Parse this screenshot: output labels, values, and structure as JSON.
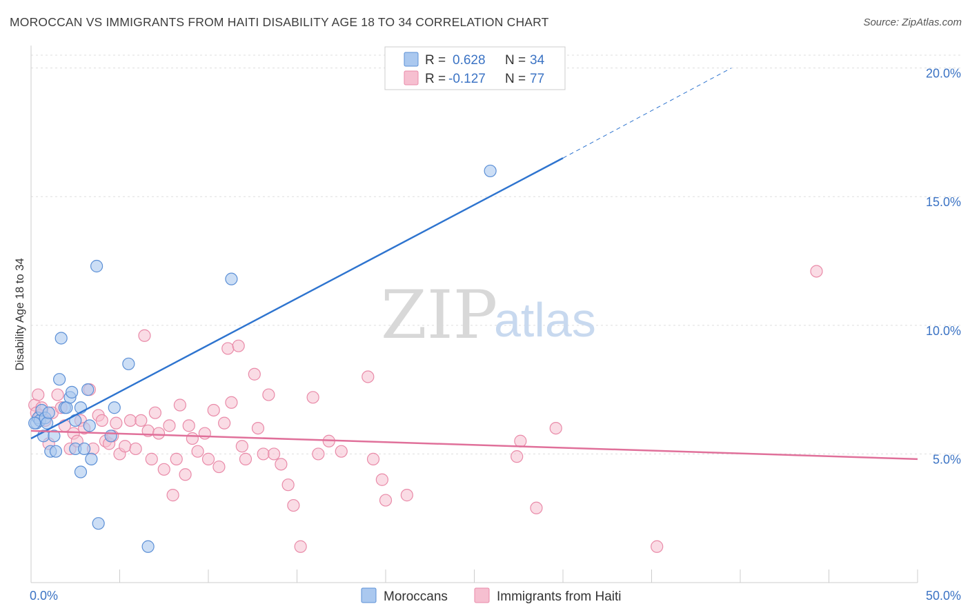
{
  "header": {
    "title": "MOROCCAN VS IMMIGRANTS FROM HAITI DISABILITY AGE 18 TO 34 CORRELATION CHART",
    "source": "Source: ZipAtlas.com"
  },
  "watermark": {
    "zip": "ZIP",
    "atlas": "atlas"
  },
  "colors": {
    "blue_fill": "#aac8ef",
    "blue_stroke": "#5b8fd6",
    "blue_line": "#2e74cf",
    "pink_fill": "#f6bfd0",
    "pink_stroke": "#e98aa8",
    "pink_line": "#e0709a",
    "grid": "#dddddd",
    "tick_text": "#3b73c4"
  },
  "legend": {
    "rows": [
      {
        "r_label": "R =",
        "r_value": "0.628",
        "n_label": "N =",
        "n_value": "34"
      },
      {
        "r_label": "R =",
        "r_value": "-0.127",
        "n_label": "N =",
        "n_value": "77"
      }
    ]
  },
  "bottom_legend": [
    "Moroccans",
    "Immigrants from Haiti"
  ],
  "chart_data": {
    "type": "scatter",
    "title": "MOROCCAN VS IMMIGRANTS FROM HAITI DISABILITY AGE 18 TO 34 CORRELATION CHART",
    "xlabel": "",
    "ylabel": "Disability Age 18 to 34",
    "xlim": [
      0,
      50
    ],
    "ylim": [
      0,
      20.5
    ],
    "x_tick_labels": [
      {
        "value": 0,
        "label": "0.0%"
      },
      {
        "value": 50,
        "label": "50.0%"
      }
    ],
    "y_tick_labels": [
      {
        "value": 5,
        "label": "5.0%"
      },
      {
        "value": 10,
        "label": "10.0%"
      },
      {
        "value": 15,
        "label": "15.0%"
      },
      {
        "value": 20,
        "label": "20.0%"
      }
    ],
    "series": [
      {
        "name": "Moroccans",
        "trend": {
          "x0": 0,
          "y0": 5.6,
          "x1": 30,
          "y1": 16.5,
          "dash_to_x": 39.5,
          "dash_to_y": 20.0
        },
        "points": [
          [
            0.3,
            6.2
          ],
          [
            0.4,
            6.4
          ],
          [
            0.5,
            6.3
          ],
          [
            0.6,
            6.7
          ],
          [
            0.7,
            5.7
          ],
          [
            0.8,
            6.4
          ],
          [
            0.9,
            6.2
          ],
          [
            1.0,
            6.6
          ],
          [
            1.1,
            5.1
          ],
          [
            1.3,
            5.7
          ],
          [
            1.4,
            5.1
          ],
          [
            1.6,
            7.9
          ],
          [
            1.7,
            9.5
          ],
          [
            1.9,
            6.8
          ],
          [
            2.0,
            6.8
          ],
          [
            2.2,
            7.2
          ],
          [
            2.3,
            7.4
          ],
          [
            2.5,
            5.2
          ],
          [
            2.5,
            6.3
          ],
          [
            2.8,
            4.3
          ],
          [
            2.8,
            6.8
          ],
          [
            3.0,
            5.2
          ],
          [
            3.2,
            7.5
          ],
          [
            3.3,
            6.1
          ],
          [
            3.4,
            4.8
          ],
          [
            3.7,
            12.3
          ],
          [
            3.8,
            2.3
          ],
          [
            4.5,
            5.7
          ],
          [
            4.7,
            6.8
          ],
          [
            5.5,
            8.5
          ],
          [
            6.6,
            1.4
          ],
          [
            11.3,
            11.8
          ],
          [
            25.9,
            16.0
          ],
          [
            0.2,
            6.2
          ]
        ]
      },
      {
        "name": "Immigrants from Haiti",
        "trend": {
          "x0": 0,
          "y0": 5.9,
          "x1": 50,
          "y1": 4.8
        },
        "points": [
          [
            0.2,
            6.9
          ],
          [
            0.3,
            6.6
          ],
          [
            0.4,
            7.3
          ],
          [
            0.5,
            6.5
          ],
          [
            0.6,
            6.8
          ],
          [
            0.8,
            6.3
          ],
          [
            1.0,
            5.4
          ],
          [
            1.2,
            6.6
          ],
          [
            1.5,
            7.3
          ],
          [
            1.7,
            6.8
          ],
          [
            1.9,
            6.1
          ],
          [
            2.2,
            5.2
          ],
          [
            2.4,
            5.8
          ],
          [
            2.6,
            5.5
          ],
          [
            2.8,
            6.3
          ],
          [
            3.0,
            6.0
          ],
          [
            3.3,
            7.5
          ],
          [
            3.5,
            5.2
          ],
          [
            3.8,
            6.5
          ],
          [
            4.0,
            6.3
          ],
          [
            4.2,
            5.5
          ],
          [
            4.4,
            5.4
          ],
          [
            4.6,
            5.7
          ],
          [
            4.8,
            6.2
          ],
          [
            5.0,
            5.0
          ],
          [
            5.3,
            5.3
          ],
          [
            5.6,
            6.3
          ],
          [
            5.9,
            5.2
          ],
          [
            6.2,
            6.3
          ],
          [
            6.4,
            9.6
          ],
          [
            6.6,
            5.9
          ],
          [
            6.8,
            4.8
          ],
          [
            7.0,
            6.6
          ],
          [
            7.2,
            5.8
          ],
          [
            7.5,
            4.4
          ],
          [
            7.8,
            6.1
          ],
          [
            8.0,
            3.4
          ],
          [
            8.2,
            4.8
          ],
          [
            8.4,
            6.9
          ],
          [
            8.7,
            4.2
          ],
          [
            8.9,
            6.1
          ],
          [
            9.1,
            5.6
          ],
          [
            9.4,
            5.1
          ],
          [
            9.8,
            5.8
          ],
          [
            10.0,
            4.8
          ],
          [
            10.3,
            6.7
          ],
          [
            10.6,
            4.5
          ],
          [
            10.9,
            6.2
          ],
          [
            11.1,
            9.1
          ],
          [
            11.3,
            7.0
          ],
          [
            11.7,
            9.2
          ],
          [
            11.9,
            5.3
          ],
          [
            12.1,
            4.8
          ],
          [
            12.6,
            8.1
          ],
          [
            12.8,
            6.0
          ],
          [
            13.1,
            5.0
          ],
          [
            13.4,
            7.3
          ],
          [
            13.7,
            5.0
          ],
          [
            14.1,
            4.6
          ],
          [
            14.5,
            3.8
          ],
          [
            14.8,
            3.0
          ],
          [
            15.2,
            1.4
          ],
          [
            15.9,
            7.2
          ],
          [
            16.2,
            5.0
          ],
          [
            16.8,
            5.5
          ],
          [
            17.5,
            5.1
          ],
          [
            19.0,
            8.0
          ],
          [
            19.3,
            4.8
          ],
          [
            19.8,
            4.0
          ],
          [
            20.0,
            3.2
          ],
          [
            21.2,
            3.4
          ],
          [
            27.6,
            5.5
          ],
          [
            27.4,
            4.9
          ],
          [
            28.5,
            2.9
          ],
          [
            29.6,
            6.0
          ],
          [
            35.3,
            1.4
          ],
          [
            44.3,
            12.1
          ]
        ]
      }
    ]
  }
}
